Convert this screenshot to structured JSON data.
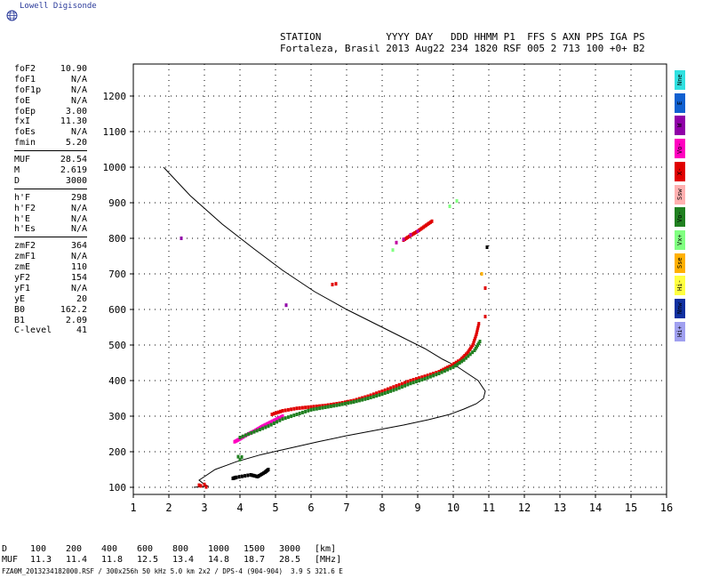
{
  "logo": {
    "text": "Lowell Digisonde",
    "icon": "globe-icon"
  },
  "header": {
    "line1": "STATION           YYYY DAY   DDD HHMM P1  FFS S AXN PPS IGA PS",
    "line2": "Fortaleza, Brasil 2013 Aug22 234 1820 RSF 005 2 713 100 +0+ B2"
  },
  "params": [
    [
      [
        "foF2",
        "10.90"
      ],
      [
        "foF1",
        "N/A"
      ],
      [
        "foF1p",
        "N/A"
      ],
      [
        "foE",
        "N/A"
      ],
      [
        "foEp",
        "3.00"
      ],
      [
        "fxI",
        "11.30"
      ],
      [
        "foEs",
        "N/A"
      ],
      [
        "fmin",
        "5.20"
      ]
    ],
    [
      [
        "MUF",
        "28.54"
      ],
      [
        "M",
        "2.619"
      ],
      [
        "D",
        "3000"
      ]
    ],
    [
      [
        "h'F",
        "298"
      ],
      [
        "h'F2",
        "N/A"
      ],
      [
        "h'E",
        "N/A"
      ],
      [
        "h'Es",
        "N/A"
      ]
    ],
    [
      [
        "zmF2",
        "364"
      ],
      [
        "zmF1",
        "N/A"
      ],
      [
        "zmE",
        "110"
      ],
      [
        "yF2",
        "154"
      ],
      [
        "yF1",
        "N/A"
      ],
      [
        "yE",
        "20"
      ],
      [
        "B0",
        "162.2"
      ],
      [
        "B1",
        "2.09"
      ],
      [
        "C-level",
        "41"
      ]
    ]
  ],
  "legend": [
    {
      "label": "Nne",
      "color": "#30e0e0"
    },
    {
      "label": "E",
      "color": "#1060d0"
    },
    {
      "label": "W",
      "color": "#9000a8"
    },
    {
      "label": "Vo-",
      "color": "#ff00c0"
    },
    {
      "label": "X-",
      "color": "#e00000"
    },
    {
      "label": "Ssw",
      "color": "#ffb0b0"
    },
    {
      "label": "Vo-",
      "color": "#208020"
    },
    {
      "label": "Vx+",
      "color": "#80ff80"
    },
    {
      "label": "Sse",
      "color": "#ffb000"
    },
    {
      "label": "Hi-",
      "color": "#ffff40"
    },
    {
      "label": "Nnw",
      "color": "#1030a0"
    },
    {
      "label": "Hi+",
      "color": "#a0a0f0"
    }
  ],
  "muf_table": {
    "d_label": "D",
    "d_values": [
      "100",
      "200",
      "400",
      "600",
      "800",
      "1000",
      "1500",
      "3000"
    ],
    "d_unit": "[km]",
    "muf_label": "MUF",
    "muf_values": [
      "11.3",
      "11.4",
      "11.8",
      "12.5",
      "13.4",
      "14.8",
      "18.7",
      "28.5"
    ],
    "muf_unit": "[MHz]"
  },
  "footer": "FZA0M_2013234182000.RSF / 300x256h 50 kHz 5.0 km 2x2 / DPS-4 (904-904)  3.9 S 321.6 E",
  "chart_data": {
    "type": "scatter",
    "xlim": [
      1,
      16
    ],
    "ylim": [
      80,
      1290
    ],
    "xticks": [
      1,
      2,
      3,
      4,
      5,
      6,
      7,
      8,
      9,
      10,
      11,
      12,
      13,
      14,
      15,
      16
    ],
    "yticks": [
      100,
      200,
      300,
      400,
      500,
      600,
      700,
      800,
      900,
      1000,
      1100,
      1200
    ],
    "grid": true,
    "profile": {
      "x": [
        1.85,
        2.6,
        3.5,
        4.4,
        5.2,
        6.1,
        7.0,
        7.8,
        8.6,
        9.2,
        9.7,
        10.1,
        10.4,
        10.7,
        10.9,
        10.85,
        10.65,
        10.3,
        9.9,
        9.3,
        8.6,
        7.8,
        7.0,
        6.2,
        5.4,
        4.6,
        3.9,
        3.3,
        3.0,
        2.85,
        2.95,
        3.1,
        2.7
      ],
      "y": [
        1000,
        920,
        840,
        770,
        710,
        650,
        600,
        560,
        520,
        490,
        460,
        440,
        420,
        400,
        370,
        350,
        335,
        320,
        305,
        290,
        275,
        260,
        245,
        228,
        210,
        192,
        172,
        150,
        130,
        120,
        112,
        103,
        100
      ]
    },
    "traces": [
      {
        "color": "#ff00c0",
        "x": [
          3.85,
          4.0,
          4.2,
          4.4,
          4.6,
          4.8,
          5.0,
          5.2
        ],
        "y": [
          228,
          236,
          248,
          258,
          270,
          280,
          290,
          300
        ]
      },
      {
        "color": "#e00000",
        "x": [
          4.9,
          5.2,
          5.6,
          6.0,
          6.4,
          6.8,
          7.2,
          7.6,
          8.0,
          8.4,
          8.8,
          9.2,
          9.6,
          9.9,
          10.2,
          10.4,
          10.55,
          10.65,
          10.72
        ],
        "y": [
          305,
          315,
          322,
          326,
          330,
          336,
          344,
          356,
          370,
          385,
          400,
          412,
          425,
          440,
          458,
          478,
          500,
          530,
          560
        ]
      },
      {
        "color": "#208020",
        "x": [
          4.0,
          4.4,
          4.8,
          5.2,
          5.6,
          6.0,
          6.4,
          6.8,
          7.2,
          7.6,
          8.0,
          8.4,
          8.8,
          9.2,
          9.6,
          10.0,
          10.3,
          10.6,
          10.75
        ],
        "y": [
          240,
          256,
          272,
          292,
          305,
          318,
          325,
          332,
          340,
          350,
          362,
          376,
          392,
          405,
          420,
          438,
          458,
          485,
          510
        ]
      },
      {
        "color": "#e00000",
        "x": [
          8.6,
          8.8,
          9.0,
          9.2,
          9.4
        ],
        "y": [
          795,
          808,
          820,
          834,
          848
        ]
      },
      {
        "color": "#c000a0",
        "x": [
          8.4,
          8.6,
          8.8,
          9.0
        ],
        "y": [
          788,
          797,
          810,
          820
        ]
      },
      {
        "color": "#80ff80",
        "x": [
          8.3,
          9.9,
          10.1
        ],
        "y": [
          767,
          890,
          905
        ]
      },
      {
        "color": "#208020",
        "x": [
          3.95,
          4.0,
          4.05
        ],
        "y": [
          186,
          178,
          185
        ]
      },
      {
        "color": "#000000",
        "x": [
          3.8,
          3.9,
          4.3,
          4.5,
          4.7,
          4.8
        ],
        "y": [
          125,
          128,
          135,
          130,
          142,
          150
        ]
      },
      {
        "color": "#e00000",
        "x": [
          2.9,
          3.0,
          3.05,
          2.85
        ],
        "y": [
          104,
          108,
          101,
          106
        ]
      },
      {
        "color": "#e00000",
        "x": [
          6.6,
          6.7,
          10.9,
          10.9
        ],
        "y": [
          670,
          672,
          660,
          580
        ]
      },
      {
        "color": "#9000a8",
        "x": [
          5.3,
          2.35
        ],
        "y": [
          612,
          800
        ]
      },
      {
        "color": "#ffb000",
        "x": [
          10.8
        ],
        "y": [
          700
        ]
      },
      {
        "color": "#000000",
        "x": [
          10.95
        ],
        "y": [
          775
        ]
      }
    ]
  }
}
